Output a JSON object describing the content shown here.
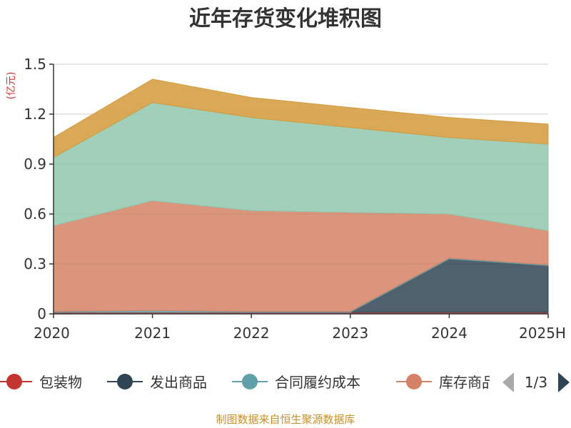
{
  "title": "近年存货变化堆积图",
  "source": "制图数据来自恒生聚源数据库",
  "pager": {
    "text": "1/3",
    "prev_color": "#aaaaaa",
    "next_color": "#2f4554"
  },
  "chart_data": {
    "type": "area",
    "stacked": true,
    "title": "近年存货变化堆积图",
    "ylabel": "(亿元)",
    "xlabel": "",
    "categories": [
      "2020",
      "2021",
      "2022",
      "2023",
      "2024",
      "2025H"
    ],
    "ylim": [
      0,
      1.5
    ],
    "yticks": [
      "0",
      "0.3",
      "0.6",
      "0.9",
      "1.2",
      "1.5"
    ],
    "grid": true,
    "legend_position": "bottom",
    "series": [
      {
        "name": "包装物",
        "color": "#c23531",
        "values": [
          0.01,
          0.01,
          0.01,
          0.01,
          0.01,
          0.01
        ]
      },
      {
        "name": "发出商品",
        "color": "#2f4554",
        "values": [
          0,
          0,
          0,
          0,
          0.32,
          0.28
        ]
      },
      {
        "name": "合同履约成本",
        "color": "#61a0a8",
        "values": [
          0.005,
          0.01,
          0.005,
          0.005,
          0.005,
          0.005
        ]
      },
      {
        "name": "库存商品",
        "color": "#d48265",
        "values": [
          0.515,
          0.66,
          0.605,
          0.595,
          0.265,
          0.205
        ]
      },
      {
        "name": "",
        "color": "#91c7ae",
        "values": [
          0.41,
          0.59,
          0.56,
          0.51,
          0.46,
          0.52
        ]
      },
      {
        "name": "",
        "color": "#d49a3a",
        "values": [
          0.12,
          0.14,
          0.12,
          0.12,
          0.12,
          0.12
        ]
      }
    ]
  }
}
